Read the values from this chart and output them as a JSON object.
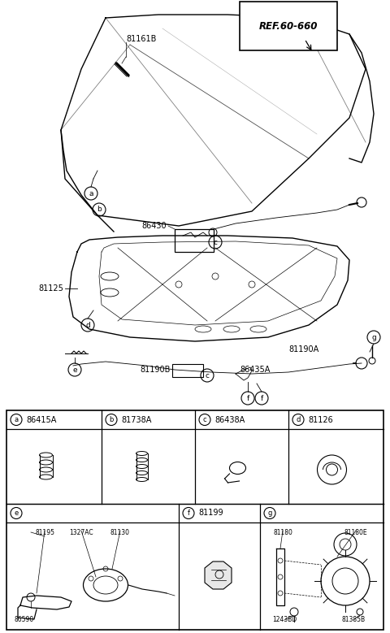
{
  "bg_color": "#ffffff",
  "ref_label": "REF.60-660",
  "row1_parts": [
    {
      "letter": "a",
      "part": "86415A"
    },
    {
      "letter": "b",
      "part": "81738A"
    },
    {
      "letter": "c",
      "part": "86438A"
    },
    {
      "letter": "d",
      "part": "81126"
    }
  ],
  "row2_parts": [
    {
      "letter": "e",
      "part": ""
    },
    {
      "letter": "f",
      "part": "81199"
    },
    {
      "letter": "g",
      "part": ""
    }
  ],
  "e_sublabels": [
    "81195",
    "1327AC",
    "81130",
    "86590"
  ],
  "g_sublabels": [
    "81180",
    "81180E",
    "1243BD",
    "81385B"
  ]
}
